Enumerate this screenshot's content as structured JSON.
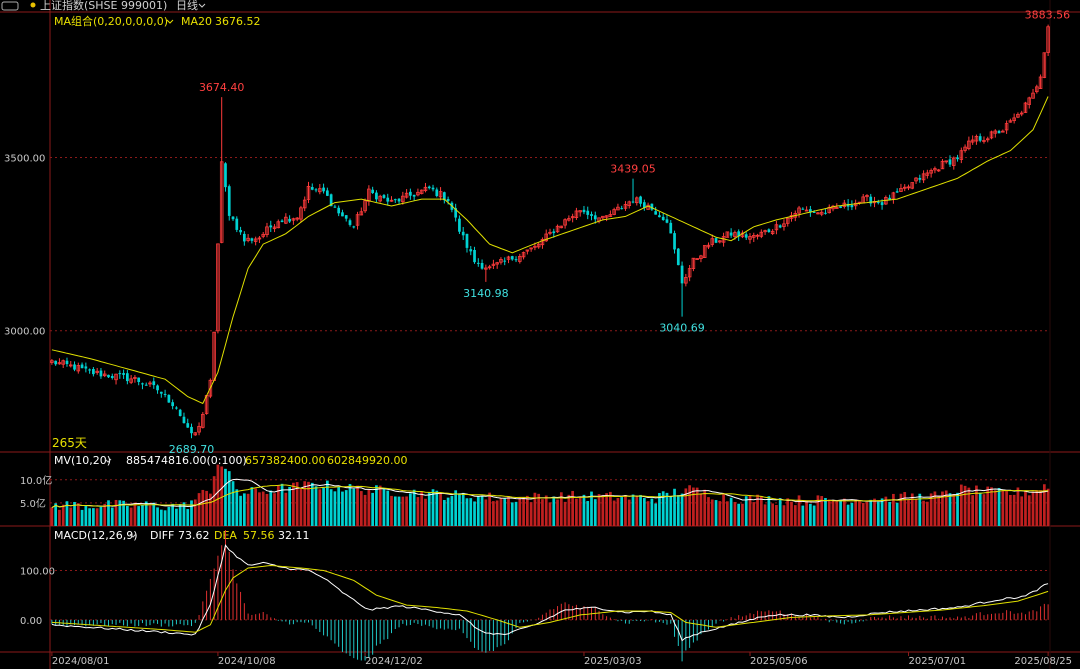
{
  "header": {
    "symbol": "上证指数(SHSE 999001)",
    "period": "日线",
    "dot_color": "#e8c000"
  },
  "main_panel": {
    "indicator_label": "MA组合(0,20,0,0,0,0)",
    "ma20_label": "MA20",
    "ma20_value": "3676.52",
    "days_label": "265天",
    "y_ticks": [
      "3500.00",
      "3000.00"
    ]
  },
  "volume_panel": {
    "label": "MV(10,20)",
    "v1": "885474816.00(0:100)",
    "v2": "657382400.00",
    "v3": "602849920.00",
    "y_ticks": [
      "10.0亿",
      "5.0亿"
    ]
  },
  "macd_panel": {
    "label": "MACD(12,26,9)",
    "diff_label": "DIFF",
    "diff_value": "73.62",
    "dea_label": "DEA",
    "dea_value": "57.56",
    "macd_value": "32.11",
    "y_ticks": [
      "100.00",
      "0.00"
    ]
  },
  "x_ticks": [
    "2024/08/01",
    "2024/10/08",
    "2024/12/02",
    "2025/03/03",
    "2025/05/06",
    "2025/07/01",
    "2025/08/25"
  ],
  "annotations": [
    {
      "label": "3674.40",
      "kind": "high",
      "index": 45
    },
    {
      "label": "2689.70",
      "kind": "low",
      "index": 37
    },
    {
      "label": "3140.98",
      "kind": "low",
      "index": 115
    },
    {
      "label": "3439.05",
      "kind": "high",
      "index": 154
    },
    {
      "label": "3040.69",
      "kind": "low",
      "index": 167
    },
    {
      "label": "3883.56",
      "kind": "high",
      "index": 264
    }
  ],
  "colors": {
    "up": "#ff3b3b",
    "down": "#00d2d2",
    "ma": "#e0e000",
    "grid": "#8b1a1a",
    "text": "#c8c8c8",
    "label_yellow": "#e8e000"
  },
  "chart_data": [
    {
      "type": "candlestick",
      "title": "上证指数(SHSE 999001)",
      "ylim": [
        2650,
        3920
      ],
      "anchors": [
        [
          0,
          2910
        ],
        [
          6,
          2895
        ],
        [
          10,
          2880
        ],
        [
          16,
          2870
        ],
        [
          22,
          2860
        ],
        [
          28,
          2830
        ],
        [
          33,
          2780
        ],
        [
          36,
          2710
        ],
        [
          38,
          2700
        ],
        [
          40,
          2760
        ],
        [
          42,
          2850
        ],
        [
          43,
          3000
        ],
        [
          44,
          3250
        ],
        [
          45,
          3480
        ],
        [
          47,
          3340
        ],
        [
          51,
          3260
        ],
        [
          55,
          3270
        ],
        [
          60,
          3320
        ],
        [
          65,
          3330
        ],
        [
          68,
          3410
        ],
        [
          72,
          3400
        ],
        [
          76,
          3340
        ],
        [
          80,
          3300
        ],
        [
          84,
          3400
        ],
        [
          90,
          3370
        ],
        [
          95,
          3390
        ],
        [
          100,
          3410
        ],
        [
          105,
          3380
        ],
        [
          108,
          3290
        ],
        [
          112,
          3200
        ],
        [
          116,
          3180
        ],
        [
          122,
          3210
        ],
        [
          128,
          3240
        ],
        [
          134,
          3300
        ],
        [
          140,
          3350
        ],
        [
          146,
          3320
        ],
        [
          150,
          3350
        ],
        [
          154,
          3380
        ],
        [
          158,
          3360
        ],
        [
          163,
          3320
        ],
        [
          167,
          3140
        ],
        [
          170,
          3200
        ],
        [
          174,
          3250
        ],
        [
          180,
          3280
        ],
        [
          186,
          3270
        ],
        [
          192,
          3300
        ],
        [
          198,
          3350
        ],
        [
          204,
          3340
        ],
        [
          210,
          3360
        ],
        [
          216,
          3380
        ],
        [
          220,
          3370
        ],
        [
          225,
          3400
        ],
        [
          230,
          3440
        ],
        [
          236,
          3480
        ],
        [
          240,
          3500
        ],
        [
          244,
          3550
        ],
        [
          248,
          3560
        ],
        [
          252,
          3580
        ],
        [
          256,
          3620
        ],
        [
          260,
          3680
        ],
        [
          262,
          3740
        ],
        [
          264,
          3883
        ]
      ],
      "ma20": [
        [
          0,
          2945
        ],
        [
          10,
          2920
        ],
        [
          20,
          2890
        ],
        [
          30,
          2860
        ],
        [
          36,
          2810
        ],
        [
          40,
          2790
        ],
        [
          44,
          2880
        ],
        [
          48,
          3040
        ],
        [
          52,
          3180
        ],
        [
          56,
          3250
        ],
        [
          62,
          3280
        ],
        [
          68,
          3330
        ],
        [
          75,
          3370
        ],
        [
          82,
          3380
        ],
        [
          90,
          3360
        ],
        [
          98,
          3380
        ],
        [
          104,
          3380
        ],
        [
          110,
          3320
        ],
        [
          116,
          3250
        ],
        [
          122,
          3225
        ],
        [
          130,
          3260
        ],
        [
          138,
          3290
        ],
        [
          146,
          3320
        ],
        [
          152,
          3330
        ],
        [
          158,
          3360
        ],
        [
          164,
          3330
        ],
        [
          170,
          3300
        ],
        [
          176,
          3270
        ],
        [
          180,
          3260
        ],
        [
          186,
          3300
        ],
        [
          192,
          3320
        ],
        [
          200,
          3340
        ],
        [
          208,
          3360
        ],
        [
          216,
          3370
        ],
        [
          224,
          3380
        ],
        [
          232,
          3410
        ],
        [
          240,
          3440
        ],
        [
          248,
          3490
        ],
        [
          254,
          3520
        ],
        [
          260,
          3580
        ],
        [
          264,
          3676
        ]
      ],
      "volume_anchors": [
        [
          0,
          4.5
        ],
        [
          20,
          4.5
        ],
        [
          35,
          4.2
        ],
        [
          42,
          8
        ],
        [
          44,
          14
        ],
        [
          46,
          12
        ],
        [
          50,
          7
        ],
        [
          60,
          8
        ],
        [
          70,
          9
        ],
        [
          80,
          8
        ],
        [
          100,
          7
        ],
        [
          120,
          6
        ],
        [
          140,
          6.5
        ],
        [
          160,
          6
        ],
        [
          168,
          8
        ],
        [
          180,
          6
        ],
        [
          200,
          5.5
        ],
        [
          220,
          6
        ],
        [
          236,
          6.5
        ],
        [
          240,
          8
        ],
        [
          252,
          7
        ],
        [
          260,
          7.5
        ],
        [
          264,
          9
        ]
      ],
      "volume_ylim": [
        0,
        16
      ],
      "macd_ylim": [
        -65,
        190
      ],
      "diff_anchors": [
        [
          0,
          -10
        ],
        [
          10,
          -15
        ],
        [
          20,
          -20
        ],
        [
          30,
          -25
        ],
        [
          38,
          -30
        ],
        [
          42,
          30
        ],
        [
          46,
          150
        ],
        [
          48,
          135
        ],
        [
          52,
          110
        ],
        [
          56,
          115
        ],
        [
          62,
          105
        ],
        [
          68,
          100
        ],
        [
          72,
          85
        ],
        [
          78,
          50
        ],
        [
          84,
          20
        ],
        [
          92,
          28
        ],
        [
          100,
          20
        ],
        [
          108,
          10
        ],
        [
          114,
          -25
        ],
        [
          120,
          -30
        ],
        [
          128,
          -10
        ],
        [
          136,
          20
        ],
        [
          144,
          25
        ],
        [
          152,
          15
        ],
        [
          158,
          18
        ],
        [
          164,
          10
        ],
        [
          167,
          -40
        ],
        [
          172,
          -25
        ],
        [
          180,
          -10
        ],
        [
          190,
          10
        ],
        [
          200,
          10
        ],
        [
          210,
          5
        ],
        [
          220,
          15
        ],
        [
          230,
          20
        ],
        [
          240,
          25
        ],
        [
          250,
          40
        ],
        [
          258,
          48
        ],
        [
          264,
          73.62
        ]
      ],
      "dea_anchors": [
        [
          0,
          -5
        ],
        [
          10,
          -10
        ],
        [
          20,
          -15
        ],
        [
          30,
          -20
        ],
        [
          38,
          -25
        ],
        [
          42,
          -10
        ],
        [
          46,
          60
        ],
        [
          48,
          85
        ],
        [
          52,
          105
        ],
        [
          58,
          110
        ],
        [
          66,
          105
        ],
        [
          72,
          100
        ],
        [
          80,
          80
        ],
        [
          86,
          50
        ],
        [
          94,
          30
        ],
        [
          102,
          25
        ],
        [
          110,
          18
        ],
        [
          118,
          0
        ],
        [
          124,
          -15
        ],
        [
          132,
          -5
        ],
        [
          140,
          10
        ],
        [
          150,
          18
        ],
        [
          158,
          18
        ],
        [
          164,
          15
        ],
        [
          168,
          -5
        ],
        [
          176,
          -15
        ],
        [
          186,
          -5
        ],
        [
          196,
          5
        ],
        [
          206,
          8
        ],
        [
          216,
          10
        ],
        [
          226,
          15
        ],
        [
          236,
          20
        ],
        [
          246,
          28
        ],
        [
          256,
          38
        ],
        [
          264,
          57.56
        ]
      ]
    }
  ]
}
